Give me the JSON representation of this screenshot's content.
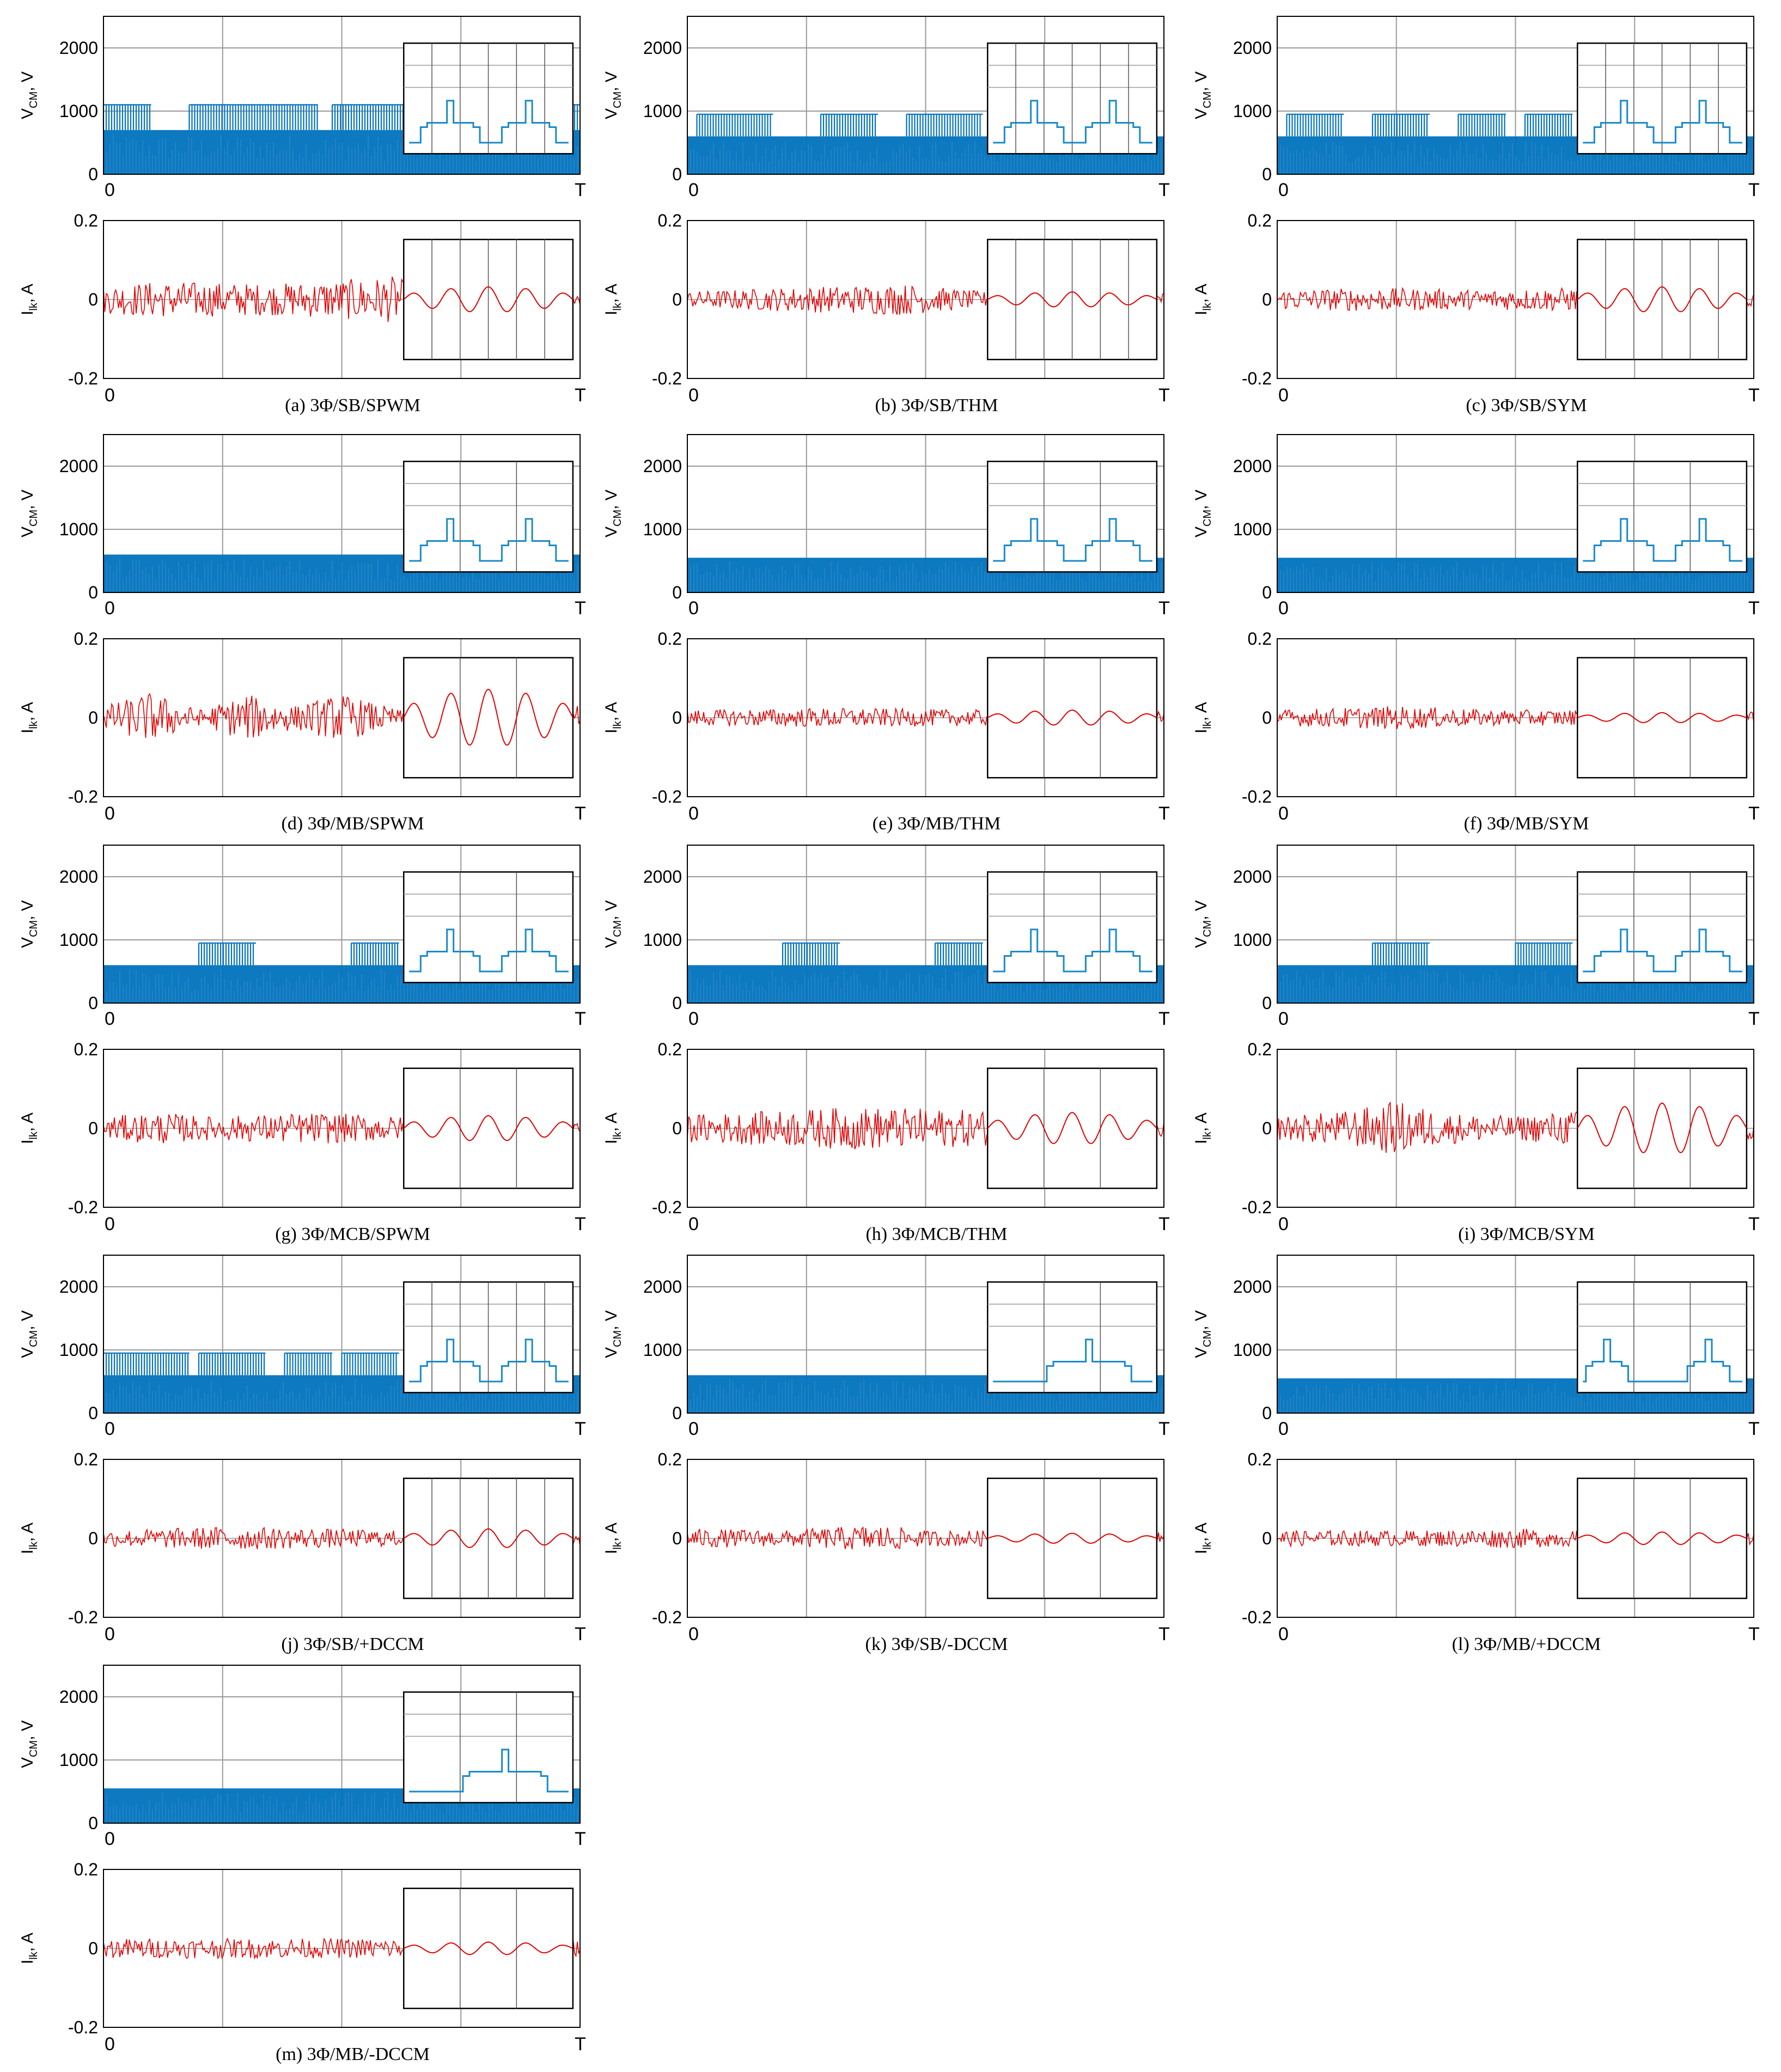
{
  "colors": {
    "vcm_color": "#0072BD",
    "ilk_color": "#E00000",
    "axis_color": "#000000",
    "grid_color": "#9a9a9a"
  },
  "labels": {
    "vcm_ylabel": "V_CM, V",
    "ilk_ylabel": "I_lk, A",
    "x_start": "0",
    "x_end": "T",
    "vcm_ticks": [
      "0",
      "1000",
      "2000"
    ],
    "ilk_ticks": [
      "-0.2",
      "0",
      "0.2"
    ]
  },
  "chart_data": [
    {
      "id": "a",
      "caption": "(a) 3Φ/SB/SPWM",
      "type": "line",
      "vcm": {
        "ylabel": "V_CM, V",
        "ylim": [
          0,
          2500
        ],
        "band_low": 0,
        "band_base": 700,
        "band_peak": 1100,
        "peak_segments": [
          [
            0.0,
            0.1
          ],
          [
            0.18,
            0.45
          ],
          [
            0.48,
            1.0
          ]
        ],
        "inset_level": 700,
        "inset_spike": 1100
      },
      "ilk": {
        "ylabel": "I_lk, A",
        "ylim": [
          -0.2,
          0.2
        ],
        "amplitude_profile": [
          [
            0.0,
            0.035
          ],
          [
            0.1,
            0.045
          ],
          [
            0.18,
            0.045
          ],
          [
            0.35,
            0.04
          ],
          [
            0.5,
            0.05
          ],
          [
            0.62,
            0.06
          ],
          [
            0.64,
            0.03
          ],
          [
            0.9,
            0.02
          ],
          [
            1.0,
            0.02
          ]
        ],
        "inset_amplitude": 0.02
      }
    },
    {
      "id": "b",
      "caption": "(b) 3Φ/SB/THM",
      "type": "line",
      "vcm": {
        "ylabel": "V_CM, V",
        "ylim": [
          0,
          2500
        ],
        "band_low": 0,
        "band_base": 600,
        "band_peak": 950,
        "peak_segments": [
          [
            0.02,
            0.18
          ],
          [
            0.28,
            0.4
          ],
          [
            0.46,
            0.62
          ]
        ],
        "inset_level": 600,
        "inset_spike": 950
      },
      "ilk": {
        "ylabel": "I_lk, A",
        "ylim": [
          -0.2,
          0.2
        ],
        "amplitude_profile": [
          [
            0.0,
            0.02
          ],
          [
            0.2,
            0.03
          ],
          [
            0.45,
            0.04
          ],
          [
            0.62,
            0.02
          ],
          [
            1.0,
            0.02
          ]
        ],
        "inset_amplitude": 0.012
      }
    },
    {
      "id": "c",
      "caption": "(c) 3Φ/SB/SYM",
      "type": "line",
      "vcm": {
        "ylabel": "V_CM, V",
        "ylim": [
          0,
          2500
        ],
        "band_low": 0,
        "band_base": 600,
        "band_peak": 950,
        "peak_segments": [
          [
            0.02,
            0.14
          ],
          [
            0.2,
            0.32
          ],
          [
            0.38,
            0.48
          ],
          [
            0.52,
            0.62
          ]
        ],
        "inset_level": 600,
        "inset_spike": 950
      },
      "ilk": {
        "ylabel": "I_lk, A",
        "ylim": [
          -0.2,
          0.2
        ],
        "amplitude_profile": [
          [
            0.0,
            0.025
          ],
          [
            0.2,
            0.03
          ],
          [
            0.4,
            0.025
          ],
          [
            0.62,
            0.03
          ],
          [
            1.0,
            0.02
          ]
        ],
        "inset_amplitude": 0.02
      }
    },
    {
      "id": "d",
      "caption": "(d) 3Φ/MB/SPWM",
      "type": "line",
      "vcm": {
        "ylabel": "V_CM, V",
        "ylim": [
          0,
          2500
        ],
        "band_low": 0,
        "band_base": 600,
        "band_peak": 600,
        "peak_segments": [],
        "inset_level": 600,
        "inset_spike": 800
      },
      "ilk": {
        "ylabel": "I_lk, A",
        "ylim": [
          -0.2,
          0.2
        ],
        "amplitude_profile": [
          [
            0.0,
            0.03
          ],
          [
            0.1,
            0.065
          ],
          [
            0.2,
            0.02
          ],
          [
            0.3,
            0.06
          ],
          [
            0.4,
            0.03
          ],
          [
            0.5,
            0.06
          ],
          [
            0.62,
            0.02
          ],
          [
            1.0,
            0.03
          ]
        ],
        "inset_amplitude": 0.045
      }
    },
    {
      "id": "e",
      "caption": "(e) 3Φ/MB/THM",
      "type": "line",
      "vcm": {
        "ylabel": "V_CM, V",
        "ylim": [
          0,
          2500
        ],
        "band_low": 0,
        "band_base": 550,
        "band_peak": 550,
        "peak_segments": [],
        "inset_level": 550,
        "inset_spike": 800
      },
      "ilk": {
        "ylabel": "I_lk, A",
        "ylim": [
          -0.2,
          0.2
        ],
        "amplitude_profile": [
          [
            0.0,
            0.02
          ],
          [
            0.3,
            0.025
          ],
          [
            0.62,
            0.02
          ],
          [
            1.0,
            0.02
          ]
        ],
        "inset_amplitude": 0.012
      }
    },
    {
      "id": "f",
      "caption": "(f) 3Φ/MB/SYM",
      "type": "line",
      "vcm": {
        "ylabel": "V_CM, V",
        "ylim": [
          0,
          2500
        ],
        "band_low": 0,
        "band_base": 550,
        "band_peak": 550,
        "peak_segments": [],
        "inset_level": 550,
        "inset_spike": 800
      },
      "ilk": {
        "ylabel": "I_lk, A",
        "ylim": [
          -0.2,
          0.2
        ],
        "amplitude_profile": [
          [
            0.0,
            0.02
          ],
          [
            0.25,
            0.03
          ],
          [
            0.45,
            0.02
          ],
          [
            0.62,
            0.02
          ],
          [
            1.0,
            0.02
          ]
        ],
        "inset_amplitude": 0.008
      }
    },
    {
      "id": "g",
      "caption": "(g) 3Φ/MCB/SPWM",
      "type": "line",
      "vcm": {
        "ylabel": "V_CM, V",
        "ylim": [
          0,
          2500
        ],
        "band_low": 0,
        "band_base": 600,
        "band_peak": 950,
        "peak_segments": [
          [
            0.2,
            0.32
          ],
          [
            0.52,
            0.62
          ]
        ],
        "inset_level": 600,
        "inset_spike": 1000
      },
      "ilk": {
        "ylabel": "I_lk, A",
        "ylim": [
          -0.2,
          0.2
        ],
        "amplitude_profile": [
          [
            0.0,
            0.03
          ],
          [
            0.12,
            0.04
          ],
          [
            0.22,
            0.03
          ],
          [
            0.45,
            0.04
          ],
          [
            0.62,
            0.03
          ],
          [
            1.0,
            0.02
          ]
        ],
        "inset_amplitude": 0.02
      }
    },
    {
      "id": "h",
      "caption": "(h) 3Φ/MCB/THM",
      "type": "line",
      "vcm": {
        "ylabel": "V_CM, V",
        "ylim": [
          0,
          2500
        ],
        "band_low": 0,
        "band_base": 600,
        "band_peak": 950,
        "peak_segments": [
          [
            0.2,
            0.32
          ],
          [
            0.52,
            0.62
          ]
        ],
        "inset_level": 600,
        "inset_spike": 1100
      },
      "ilk": {
        "ylabel": "I_lk, A",
        "ylim": [
          -0.2,
          0.2
        ],
        "amplitude_profile": [
          [
            0.0,
            0.035
          ],
          [
            0.2,
            0.045
          ],
          [
            0.35,
            0.055
          ],
          [
            0.5,
            0.05
          ],
          [
            0.62,
            0.045
          ],
          [
            1.0,
            0.02
          ]
        ],
        "inset_amplitude": 0.025
      }
    },
    {
      "id": "i",
      "caption": "(i) 3Φ/MCB/SYM",
      "type": "line",
      "vcm": {
        "ylabel": "V_CM, V",
        "ylim": [
          0,
          2500
        ],
        "band_low": 0,
        "band_base": 600,
        "band_peak": 950,
        "peak_segments": [
          [
            0.2,
            0.32
          ],
          [
            0.5,
            0.62
          ]
        ],
        "inset_level": 600,
        "inset_spike": 1000
      },
      "ilk": {
        "ylabel": "I_lk, A",
        "ylim": [
          -0.2,
          0.2
        ],
        "amplitude_profile": [
          [
            0.0,
            0.03
          ],
          [
            0.15,
            0.045
          ],
          [
            0.25,
            0.07
          ],
          [
            0.35,
            0.04
          ],
          [
            0.5,
            0.03
          ],
          [
            0.62,
            0.045
          ],
          [
            1.0,
            0.03
          ]
        ],
        "inset_amplitude": 0.04
      }
    },
    {
      "id": "j",
      "caption": "(j) 3Φ/SB/+DCCM",
      "type": "line",
      "vcm": {
        "ylabel": "V_CM, V",
        "ylim": [
          0,
          2500
        ],
        "band_low": 0,
        "band_base": 600,
        "band_peak": 950,
        "peak_segments": [
          [
            0.0,
            0.18
          ],
          [
            0.2,
            0.34
          ],
          [
            0.38,
            0.48
          ],
          [
            0.5,
            0.62
          ]
        ],
        "inset_level": 600,
        "inset_spike": 950
      },
      "ilk": {
        "ylabel": "I_lk, A",
        "ylim": [
          -0.2,
          0.2
        ],
        "amplitude_profile": [
          [
            0.0,
            0.02
          ],
          [
            0.25,
            0.03
          ],
          [
            0.45,
            0.025
          ],
          [
            0.62,
            0.02
          ],
          [
            1.0,
            0.02
          ]
        ],
        "inset_amplitude": 0.015
      }
    },
    {
      "id": "k",
      "caption": "(k) 3Φ/SB/-DCCM",
      "type": "line",
      "vcm": {
        "ylabel": "V_CM, V",
        "ylim": [
          0,
          2500
        ],
        "band_low": 0,
        "band_base": 600,
        "band_peak": 600,
        "peak_segments": [],
        "inset_level": 600,
        "inset_spike": 800
      },
      "ilk": {
        "ylabel": "I_lk, A",
        "ylim": [
          -0.2,
          0.2
        ],
        "amplitude_profile": [
          [
            0.0,
            0.025
          ],
          [
            0.2,
            0.02
          ],
          [
            0.4,
            0.035
          ],
          [
            0.5,
            0.02
          ],
          [
            0.62,
            0.02
          ],
          [
            1.0,
            0.015
          ]
        ],
        "inset_amplitude": 0.008
      }
    },
    {
      "id": "l",
      "caption": "(l) 3Φ/MB/+DCCM",
      "type": "line",
      "vcm": {
        "ylabel": "V_CM, V",
        "ylim": [
          0,
          2500
        ],
        "band_low": 0,
        "band_base": 550,
        "band_peak": 550,
        "peak_segments": [],
        "inset_level": 550,
        "inset_spike": 900
      },
      "ilk": {
        "ylabel": "I_lk, A",
        "ylim": [
          -0.2,
          0.2
        ],
        "amplitude_profile": [
          [
            0.0,
            0.02
          ],
          [
            0.3,
            0.02
          ],
          [
            0.5,
            0.025
          ],
          [
            0.62,
            0.02
          ],
          [
            1.0,
            0.02
          ]
        ],
        "inset_amplitude": 0.01
      }
    },
    {
      "id": "m",
      "caption": "(m) 3Φ/MB/-DCCM",
      "type": "line",
      "vcm": {
        "ylabel": "V_CM, V",
        "ylim": [
          0,
          2500
        ],
        "band_low": 0,
        "band_base": 550,
        "band_peak": 550,
        "peak_segments": [],
        "inset_level": 550,
        "inset_spike": 800
      },
      "ilk": {
        "ylabel": "I_lk, A",
        "ylim": [
          -0.2,
          0.2
        ],
        "amplitude_profile": [
          [
            0.0,
            0.025
          ],
          [
            0.3,
            0.025
          ],
          [
            0.62,
            0.025
          ],
          [
            1.0,
            0.02
          ]
        ],
        "inset_amplitude": 0.01
      }
    }
  ]
}
